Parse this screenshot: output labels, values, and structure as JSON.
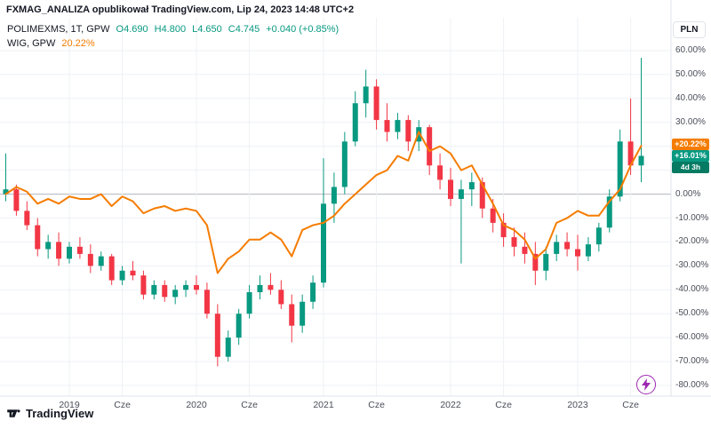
{
  "attribution": "FXMAG_ANALIZA opublikował TradingView.com, Lip 24, 2023 14:48 UTC+2",
  "legend": {
    "symbol": {
      "title": "POLIMEXMS, 1T, GPW",
      "open": "O4.690",
      "high": "H4.800",
      "low": "L4.650",
      "close": "C4.745",
      "change": "+0.040 (+0.85%)"
    },
    "compare": {
      "title": "WIG, GPW",
      "value": "20.22%"
    }
  },
  "axis": {
    "currency_button": "PLN",
    "y_ticks": [
      "60.00%",
      "50.00%",
      "40.00%",
      "30.00%",
      "20.00%",
      "10.00%",
      "0.00%",
      "-10.00%",
      "-20.00%",
      "-30.00%",
      "-40.00%",
      "-50.00%",
      "-60.00%",
      "-70.00%",
      "-80.00%"
    ],
    "x_ticks": [
      {
        "label": "2019",
        "i": 6
      },
      {
        "label": "Cze",
        "i": 11
      },
      {
        "label": "2020",
        "i": 18
      },
      {
        "label": "Cze",
        "i": 23
      },
      {
        "label": "2021",
        "i": 30
      },
      {
        "label": "Cze",
        "i": 35
      },
      {
        "label": "2022",
        "i": 42
      },
      {
        "label": "Cze",
        "i": 47
      },
      {
        "label": "2023",
        "i": 54
      },
      {
        "label": "Cze",
        "i": 59
      }
    ]
  },
  "price_labels": {
    "wig": "+20.22%",
    "symbol": "+16.01%",
    "countdown": "4d 3h"
  },
  "footer": {
    "brand": "TradingView"
  },
  "colors": {
    "up": "#089981",
    "down": "#f23645",
    "compare": "#f57c00",
    "grid": "#eef1f6",
    "zero_line": "#b2b5be",
    "axis_border": "#e0e3eb",
    "purple": "#9c27b0"
  },
  "chart_data": {
    "type": "candlestick+line",
    "title": "POLIMEXMS vs WIG — percent change, weekly (1T), GPW",
    "y_unit": "%",
    "ylim": [
      -80,
      60
    ],
    "y_tick_values": [
      60,
      50,
      40,
      30,
      20,
      10,
      0,
      -10,
      -20,
      -30,
      -40,
      -50,
      -60,
      -70,
      -80
    ],
    "months": [
      "2018-07",
      "2018-08",
      "2018-09",
      "2018-10",
      "2018-11",
      "2018-12",
      "2019-01",
      "2019-02",
      "2019-03",
      "2019-04",
      "2019-05",
      "2019-06",
      "2019-07",
      "2019-08",
      "2019-09",
      "2019-10",
      "2019-11",
      "2019-12",
      "2020-01",
      "2020-02",
      "2020-03",
      "2020-04",
      "2020-05",
      "2020-06",
      "2020-07",
      "2020-08",
      "2020-09",
      "2020-10",
      "2020-11",
      "2020-12",
      "2021-01",
      "2021-02",
      "2021-03",
      "2021-04",
      "2021-05",
      "2021-06",
      "2021-07",
      "2021-08",
      "2021-09",
      "2021-10",
      "2021-11",
      "2021-12",
      "2022-01",
      "2022-02",
      "2022-03",
      "2022-04",
      "2022-05",
      "2022-06",
      "2022-07",
      "2022-08",
      "2022-09",
      "2022-10",
      "2022-11",
      "2022-12",
      "2023-01",
      "2023-02",
      "2023-03",
      "2023-04",
      "2023-05",
      "2023-06",
      "2023-07"
    ],
    "series": [
      {
        "name": "POLIMEXMS",
        "type": "candlestick",
        "ohlc_pct": [
          [
            0,
            17,
            -3,
            2
          ],
          [
            2,
            4,
            -9,
            -7
          ],
          [
            -7,
            -3,
            -15,
            -13
          ],
          [
            -13,
            -10,
            -26,
            -23
          ],
          [
            -23,
            -17,
            -27,
            -20
          ],
          [
            -20,
            -16,
            -30,
            -27
          ],
          [
            -27,
            -20,
            -29,
            -22
          ],
          [
            -22,
            -18,
            -27,
            -25
          ],
          [
            -25,
            -21,
            -33,
            -30
          ],
          [
            -30,
            -24,
            -32,
            -26
          ],
          [
            -26,
            -25,
            -38,
            -36
          ],
          [
            -36,
            -30,
            -38,
            -32
          ],
          [
            -32,
            -28,
            -36,
            -34
          ],
          [
            -34,
            -32,
            -44,
            -42
          ],
          [
            -42,
            -36,
            -44,
            -38
          ],
          [
            -38,
            -36,
            -45,
            -43
          ],
          [
            -43,
            -38,
            -46,
            -40
          ],
          [
            -40,
            -36,
            -43,
            -38
          ],
          [
            -38,
            -34,
            -42,
            -40
          ],
          [
            -40,
            -37,
            -52,
            -50
          ],
          [
            -50,
            -46,
            -72,
            -68
          ],
          [
            -68,
            -57,
            -70,
            -60
          ],
          [
            -60,
            -48,
            -63,
            -50
          ],
          [
            -50,
            -38,
            -52,
            -41
          ],
          [
            -41,
            -34,
            -44,
            -38
          ],
          [
            -38,
            -33,
            -42,
            -40
          ],
          [
            -40,
            -36,
            -48,
            -46
          ],
          [
            -46,
            -42,
            -62,
            -55
          ],
          [
            -55,
            -42,
            -58,
            -45
          ],
          [
            -45,
            -34,
            -48,
            -37
          ],
          [
            -37,
            15,
            -39,
            -4
          ],
          [
            -4,
            9,
            -12,
            3
          ],
          [
            3,
            26,
            0,
            22
          ],
          [
            22,
            43,
            20,
            38
          ],
          [
            38,
            52,
            32,
            45
          ],
          [
            45,
            48,
            27,
            31
          ],
          [
            31,
            38,
            22,
            26
          ],
          [
            26,
            34,
            23,
            31
          ],
          [
            31,
            33,
            18,
            22
          ],
          [
            22,
            31,
            18,
            28
          ],
          [
            28,
            29,
            8,
            12
          ],
          [
            12,
            17,
            2,
            6
          ],
          [
            6,
            11,
            -5,
            -2
          ],
          [
            -2,
            6,
            -29,
            2
          ],
          [
            2,
            9,
            -5,
            5
          ],
          [
            5,
            7,
            -10,
            -6
          ],
          [
            -6,
            -2,
            -16,
            -12
          ],
          [
            -12,
            -8,
            -22,
            -18
          ],
          [
            -18,
            -14,
            -26,
            -22
          ],
          [
            -22,
            -16,
            -29,
            -25
          ],
          [
            -25,
            -20,
            -38,
            -32
          ],
          [
            -32,
            -22,
            -36,
            -25
          ],
          [
            -25,
            -17,
            -28,
            -20
          ],
          [
            -20,
            -16,
            -26,
            -23
          ],
          [
            -23,
            -17,
            -32,
            -26
          ],
          [
            -26,
            -18,
            -28,
            -21
          ],
          [
            -21,
            -12,
            -24,
            -14
          ],
          [
            -14,
            2,
            -16,
            -1
          ],
          [
            -1,
            27,
            -3,
            22
          ],
          [
            22,
            40,
            8,
            12
          ],
          [
            12,
            57,
            5,
            16
          ]
        ]
      },
      {
        "name": "WIG",
        "type": "line",
        "values_pct": [
          0,
          3,
          1,
          -4,
          -2,
          -4,
          -1,
          -2,
          -2,
          0,
          -5,
          -1,
          -3,
          -8,
          -6,
          -5,
          -7,
          -6,
          -7,
          -13,
          -33,
          -27,
          -24,
          -19,
          -19,
          -16,
          -19,
          -26,
          -15,
          -13,
          -12,
          -9,
          -4,
          0,
          4,
          8,
          10,
          16,
          14,
          26,
          18,
          20,
          17,
          10,
          12,
          4,
          -4,
          -13,
          -15,
          -19,
          -27,
          -23,
          -12,
          -10,
          -7,
          -9,
          -9,
          -3,
          2,
          12,
          20.22
        ]
      }
    ]
  }
}
